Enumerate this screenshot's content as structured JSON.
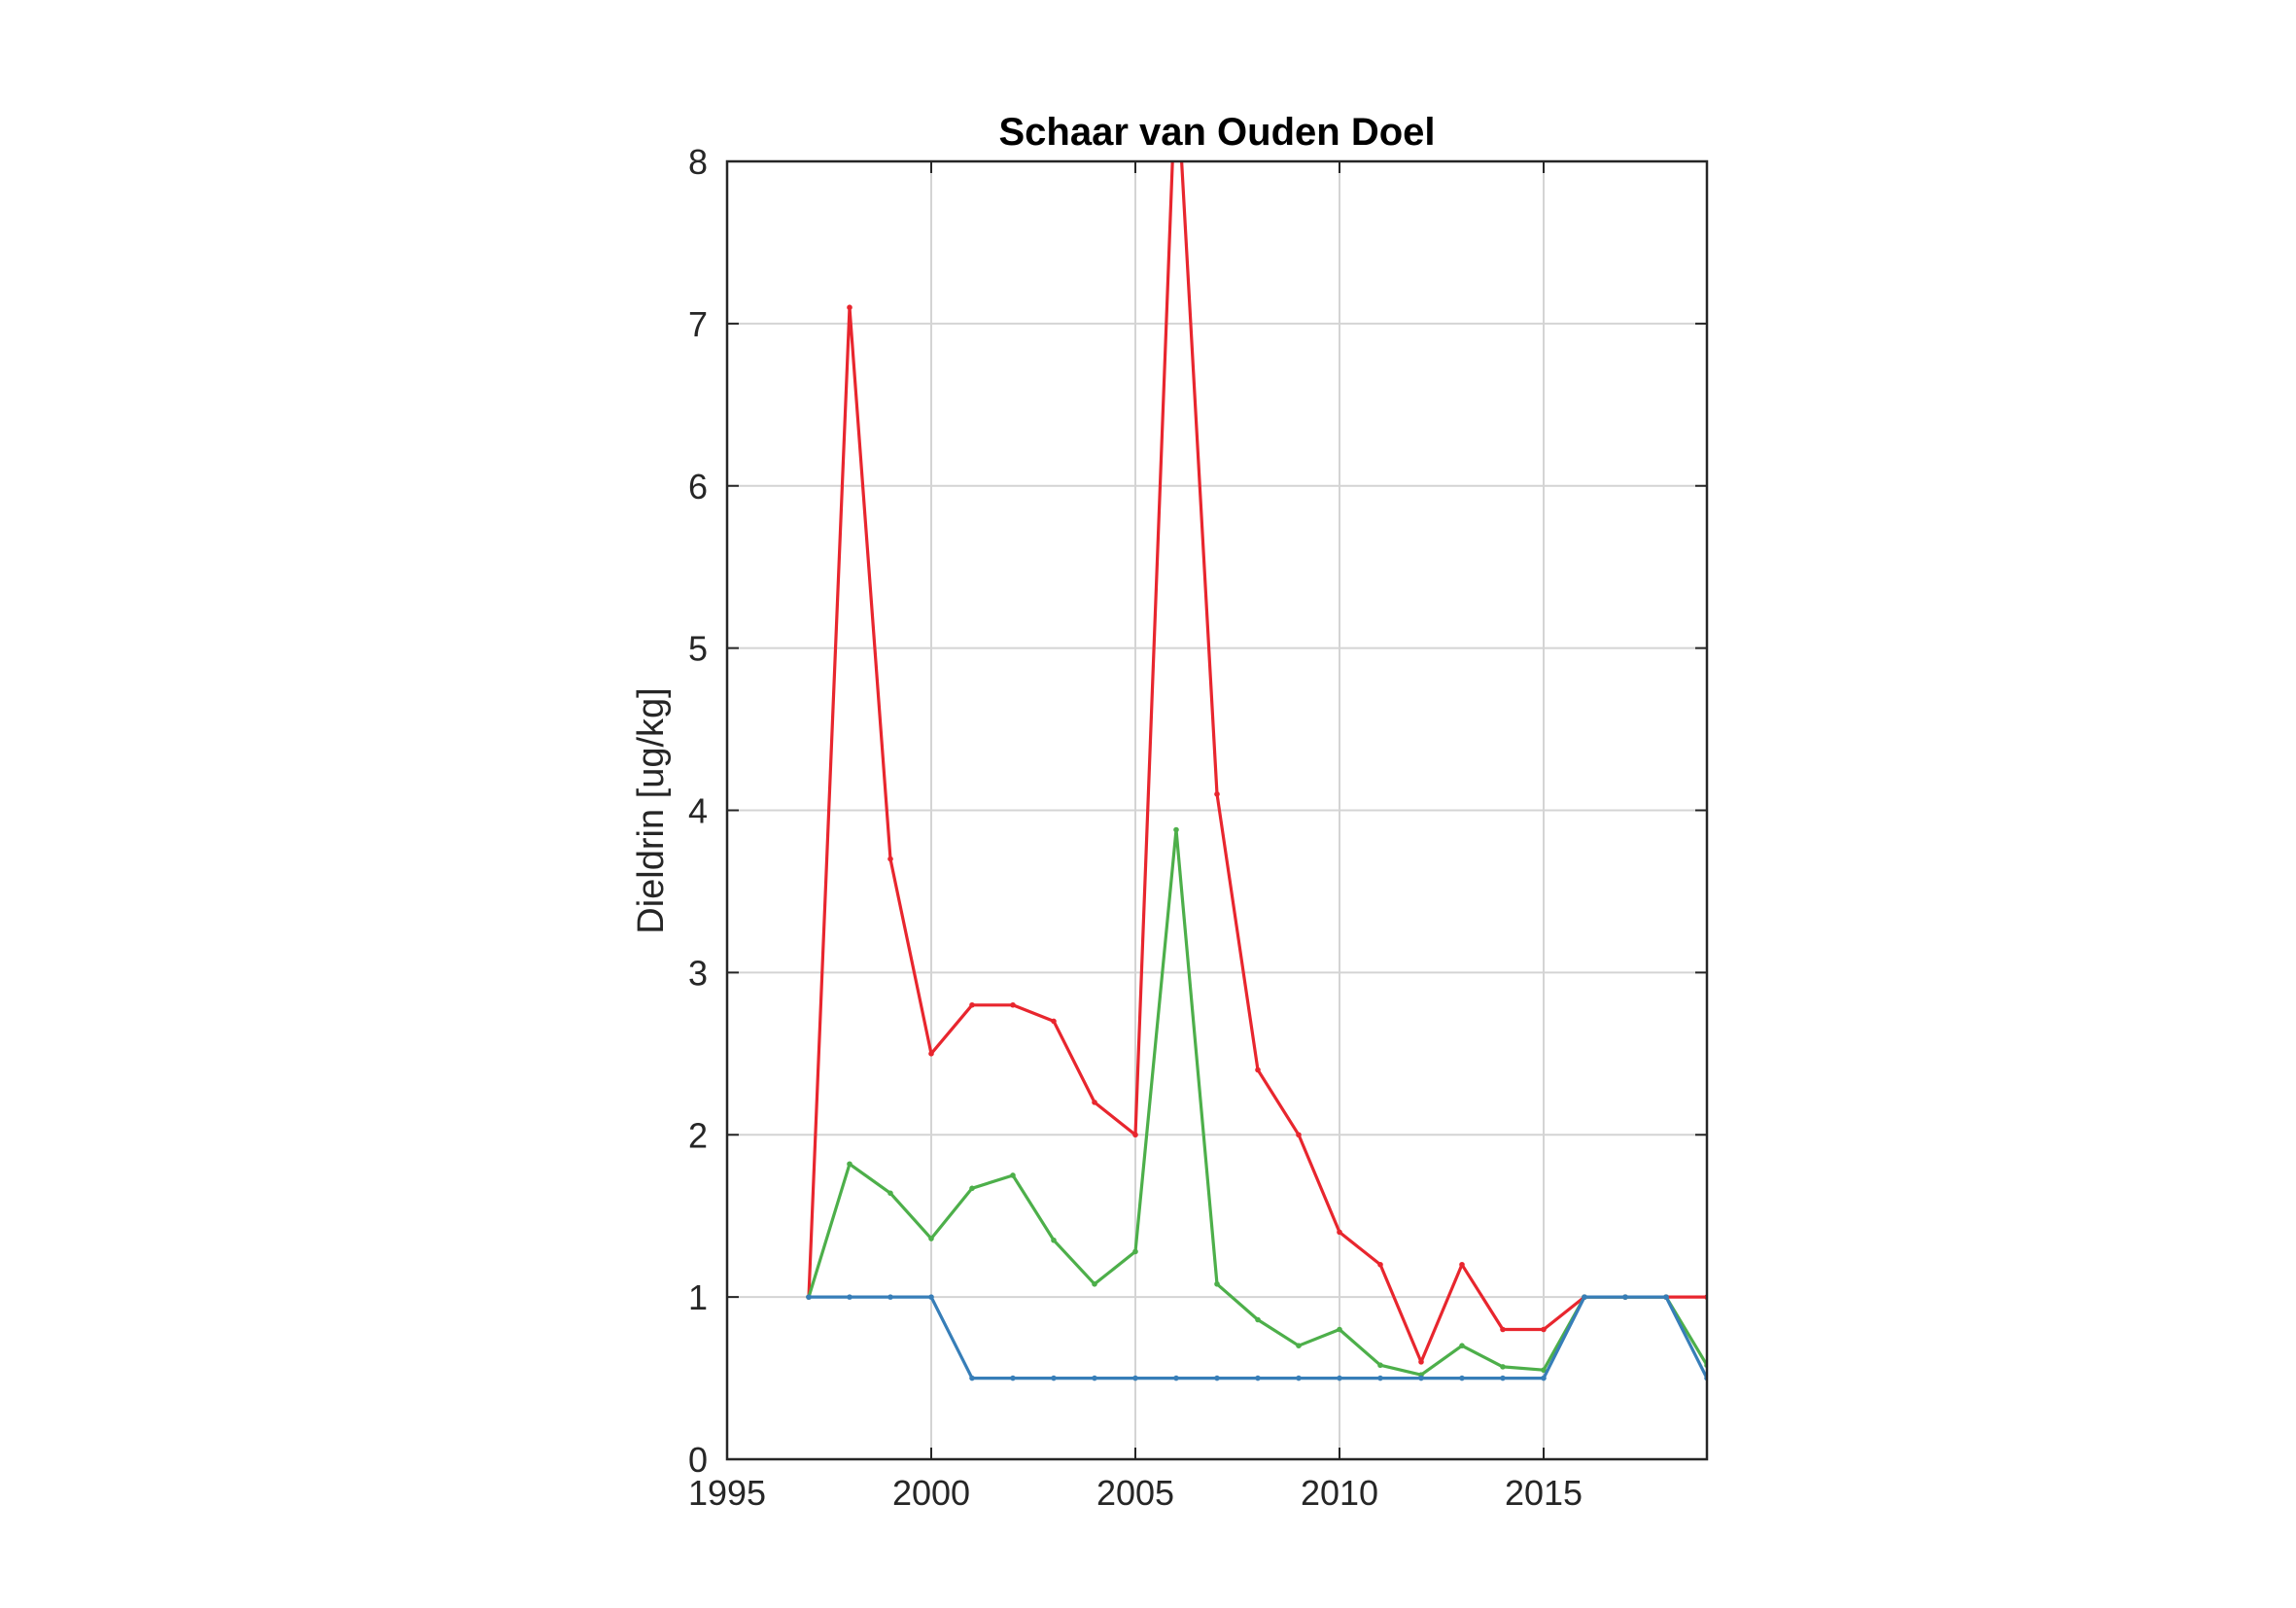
{
  "chart_data": {
    "type": "line",
    "title": "Schaar van Ouden Doel",
    "xlabel": "",
    "ylabel": "Dieldrin [ug/kg]",
    "xlim": [
      1995,
      2019
    ],
    "ylim": [
      0,
      8
    ],
    "xticks": [
      1995,
      2000,
      2005,
      2010,
      2015
    ],
    "yticks": [
      0,
      1,
      2,
      3,
      4,
      5,
      6,
      7,
      8
    ],
    "grid": true,
    "x": [
      1997,
      1998,
      1999,
      2000,
      2001,
      2002,
      2003,
      2004,
      2005,
      2006,
      2007,
      2008,
      2009,
      2010,
      2011,
      2012,
      2013,
      2014,
      2015,
      2016,
      2017,
      2018,
      2019
    ],
    "series": [
      {
        "color": "#e8262e",
        "values": [
          1,
          7.1,
          3.7,
          2.5,
          2.8,
          2.8,
          2.7,
          2.2,
          2.0,
          8.6,
          4.1,
          2.4,
          2.0,
          1.4,
          1.2,
          0.6,
          1.2,
          0.8,
          0.8,
          1,
          1,
          1,
          1
        ]
      },
      {
        "color": "#4daf4a",
        "values": [
          1,
          1.82,
          1.64,
          1.36,
          1.67,
          1.75,
          1.35,
          1.08,
          1.28,
          3.88,
          1.08,
          0.86,
          0.7,
          0.8,
          0.58,
          0.52,
          0.7,
          0.57,
          0.55,
          1,
          1,
          1,
          0.58
        ]
      },
      {
        "color": "#377eb8",
        "values": [
          1,
          1,
          1,
          1,
          0.5,
          0.5,
          0.5,
          0.5,
          0.5,
          0.5,
          0.5,
          0.5,
          0.5,
          0.5,
          0.5,
          0.5,
          0.5,
          0.5,
          0.5,
          1,
          1,
          1,
          0.5
        ]
      }
    ]
  }
}
